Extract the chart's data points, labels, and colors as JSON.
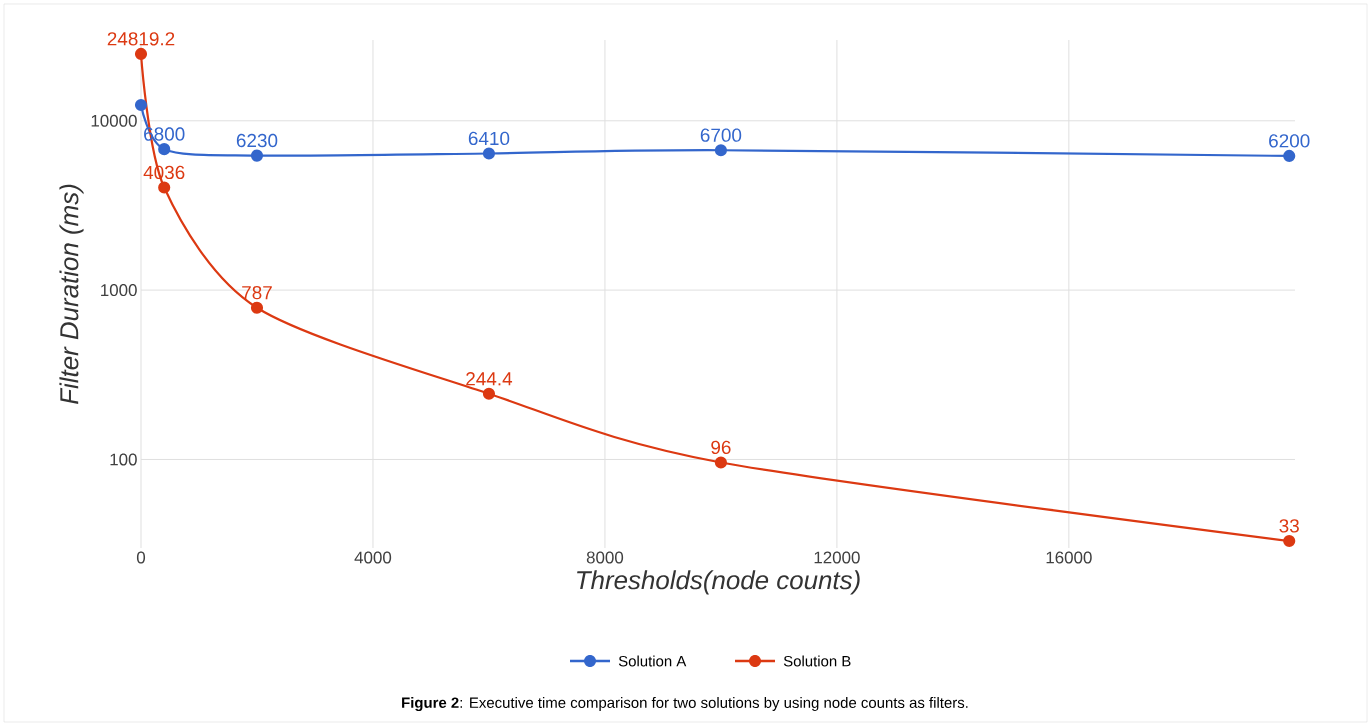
{
  "chart_data": {
    "type": "line",
    "xlabel": "Thresholds(node counts)",
    "ylabel": "Filter Duration (ms)",
    "x": [
      0,
      400,
      2000,
      6000,
      10000,
      19800
    ],
    "series": [
      {
        "name": "Solution A",
        "color": "#3366cc",
        "values": [
          12400,
          6800,
          6230,
          6410,
          6700,
          6200
        ],
        "value_labels": [
          null,
          "6800",
          "6230",
          "6410",
          "6700",
          "6200"
        ]
      },
      {
        "name": "Solution B",
        "color": "#dc3912",
        "values": [
          24819.2,
          4036,
          787,
          244.4,
          96,
          33
        ],
        "value_labels": [
          "24819.2",
          "4036",
          "787",
          "244.4",
          "96",
          "33"
        ]
      }
    ],
    "xlim": [
      0,
      19900
    ],
    "ylim": [
      30,
      30000
    ],
    "xticks": [
      0,
      4000,
      8000,
      12000,
      16000
    ],
    "yticks": [
      100,
      1000,
      10000
    ],
    "log": "y",
    "grid": true,
    "legend": "bottom",
    "marker": "circle",
    "line_style": "solid",
    "annotations": [
      "**Figure 2**: Executive time comparison for two solutions by using node counts as filters."
    ]
  }
}
